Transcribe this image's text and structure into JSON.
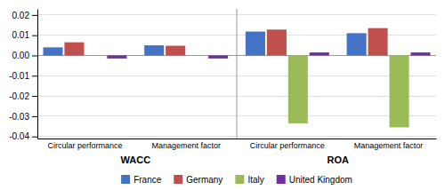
{
  "chart_data": {
    "type": "bar",
    "categories": [
      "Circular performance",
      "Management factor",
      "Circular performance",
      "Management factor"
    ],
    "series": [
      {
        "name": "France",
        "color": "#4472C4",
        "values": [
          0.004,
          0.005,
          0.0118,
          0.011
        ]
      },
      {
        "name": "Germany",
        "color": "#C0504D",
        "values": [
          0.0065,
          0.0048,
          0.0128,
          0.0135
        ]
      },
      {
        "name": "Italy",
        "color": "#9BBB59",
        "values": [
          0.0,
          0.0,
          -0.0335,
          -0.0355
        ]
      },
      {
        "name": "United Kingdom",
        "color": "#7030A0",
        "values": [
          -0.0015,
          -0.0015,
          0.0015,
          0.0015
        ]
      }
    ],
    "ylim": [
      -0.041,
      0.023
    ],
    "yticks": [
      -0.04,
      -0.03,
      -0.02,
      -0.01,
      {
        "value": 0,
        "label": "0.00"
      },
      0.01,
      0.02
    ],
    "grid": true,
    "legend": "bottom",
    "annotations": [
      "WACC",
      "ROA"
    ]
  }
}
